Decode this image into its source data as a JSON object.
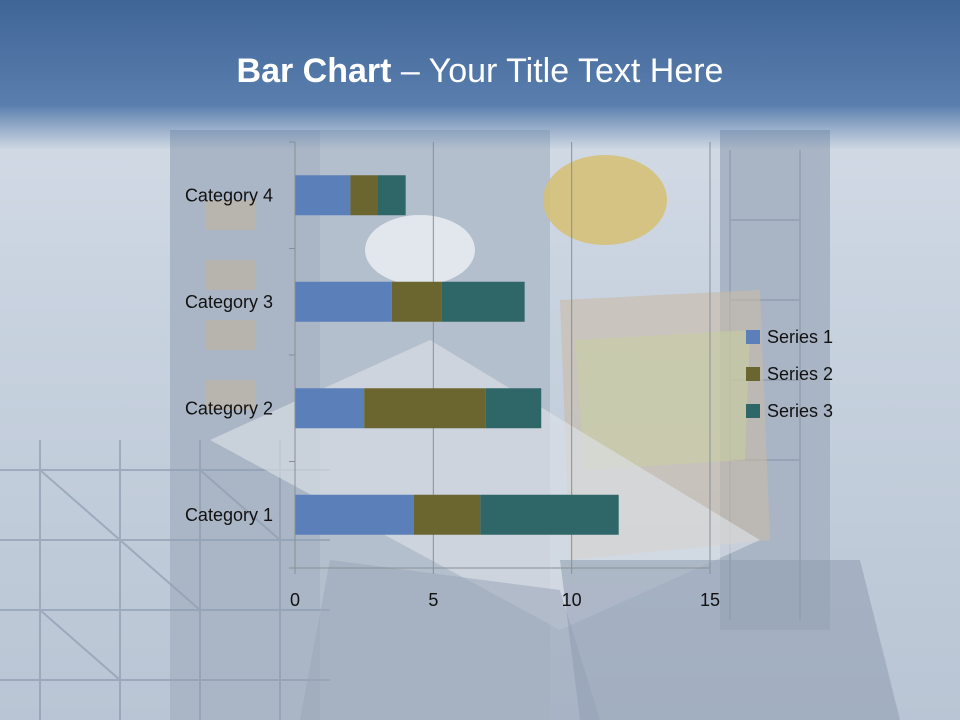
{
  "slide": {
    "title_bold": "Bar Chart",
    "title_rest": " – Your Title Text Here"
  },
  "chart_data": {
    "type": "bar",
    "orientation": "horizontal",
    "stacked": true,
    "title": "",
    "xlabel": "",
    "ylabel": "",
    "categories": [
      "Category 1",
      "Category 2",
      "Category 3",
      "Category 4"
    ],
    "series": [
      {
        "name": "Series 1",
        "values": [
          4.3,
          2.5,
          3.5,
          2.0
        ],
        "color": "#5b7fb8"
      },
      {
        "name": "Series 2",
        "values": [
          2.4,
          4.4,
          1.8,
          1.0
        ],
        "color": "#6b6630"
      },
      {
        "name": "Series 3",
        "values": [
          5.0,
          2.0,
          3.0,
          1.0
        ],
        "color": "#2f6668"
      }
    ],
    "xlim": [
      0,
      15
    ],
    "xticks": [
      "0",
      "5",
      "10",
      "15"
    ],
    "grid": "vertical",
    "legend": "right"
  }
}
